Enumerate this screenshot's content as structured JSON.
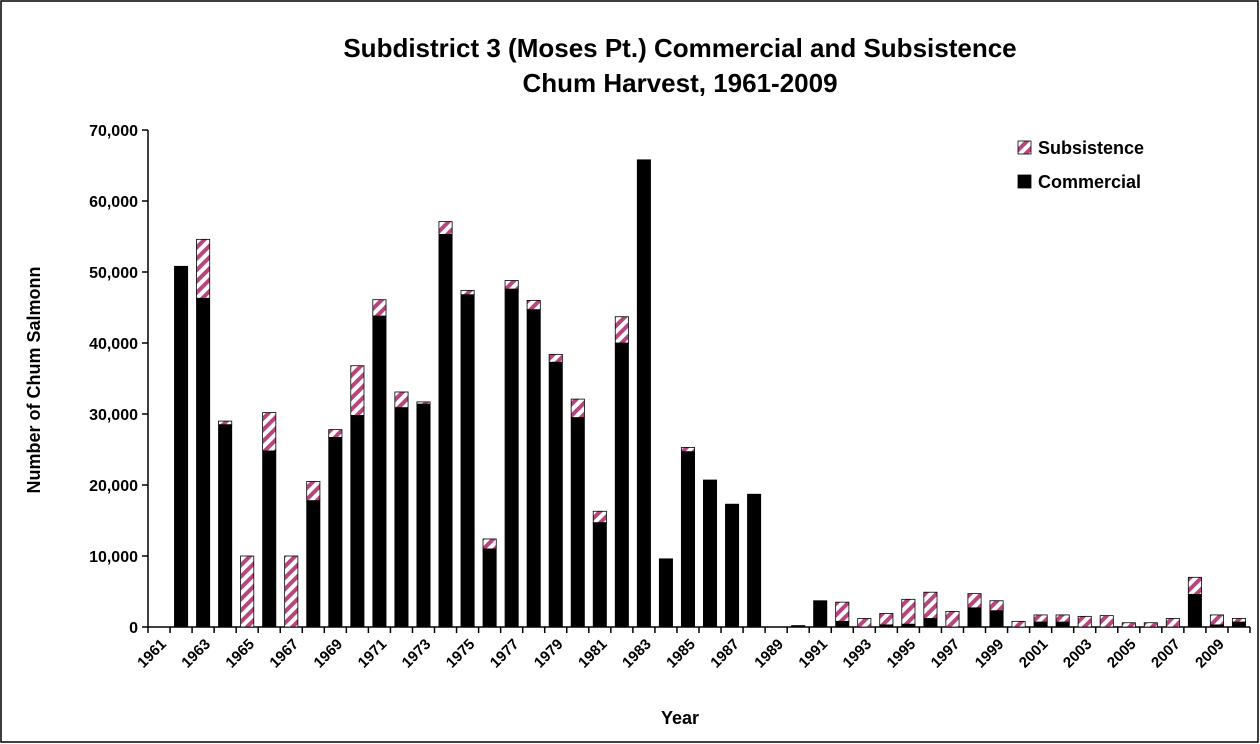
{
  "chart_data": {
    "type": "stacked-bar",
    "title": [
      "Subdistrict 3 (Moses Pt.) Commercial and Subsistence",
      "Chum Harvest, 1961-2009"
    ],
    "x_label": "Year",
    "y_label": "Number of Chum Salmonn",
    "categories": [
      "1961",
      null,
      "1963",
      null,
      "1965",
      null,
      "1967",
      null,
      "1969",
      null,
      "1971",
      null,
      "1973",
      null,
      "1975",
      null,
      "1977",
      null,
      "1979",
      null,
      "1981",
      null,
      "1983",
      null,
      "1985",
      null,
      "1987",
      null,
      "1989",
      null,
      "1991",
      null,
      "1993",
      null,
      "1995",
      null,
      "1997",
      null,
      "1999",
      null,
      "2001",
      null,
      "2003",
      null,
      "2005",
      null,
      "2007",
      null,
      "2009",
      null
    ],
    "series": [
      {
        "name": "Commercial",
        "color": "#000000",
        "values": [
          0,
          50800,
          46300,
          28500,
          0,
          24800,
          0,
          17800,
          26700,
          29800,
          43800,
          30900,
          31400,
          55300,
          46800,
          11000,
          47600,
          44700,
          37300,
          29500,
          14700,
          40000,
          65800,
          9600,
          24700,
          20700,
          17300,
          18700,
          0,
          200,
          3700,
          800,
          0,
          300,
          400,
          1200,
          0,
          2700,
          2300,
          0,
          700,
          700,
          0,
          0,
          0,
          0,
          0,
          4600,
          300,
          700
        ]
      },
      {
        "name": "Subsistence",
        "color": "#b8467e",
        "values": [
          0,
          0,
          8300,
          500,
          10000,
          5400,
          10000,
          2700,
          1100,
          7000,
          2300,
          2200,
          300,
          1800,
          600,
          1400,
          1200,
          1300,
          1100,
          2600,
          1600,
          3700,
          0,
          0,
          600,
          0,
          0,
          0,
          0,
          0,
          0,
          2700,
          1200,
          1600,
          3500,
          3700,
          2200,
          2000,
          1400,
          800,
          1000,
          1000,
          1500,
          1600,
          600,
          600,
          1200,
          2400,
          1400,
          500
        ]
      }
    ],
    "ylim": [
      0,
      70000
    ],
    "yticks": [
      0,
      {
        "value": 10000,
        "label": "10,000"
      },
      {
        "value": 20000,
        "label": "20,000"
      },
      {
        "value": 30000,
        "label": "30,000"
      },
      {
        "value": 40000,
        "label": "40,000"
      },
      {
        "value": 50000,
        "label": "50,000"
      },
      {
        "value": 60000,
        "label": "60,000"
      },
      {
        "value": 70000,
        "label": "70,000"
      }
    ],
    "legend": "top-right"
  }
}
